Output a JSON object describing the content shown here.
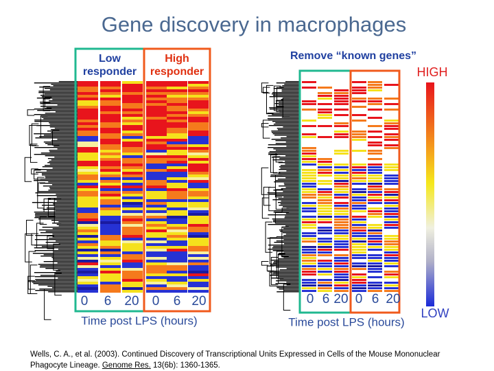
{
  "title": "Gene discovery in macrophages",
  "left_panel": {
    "groups": [
      {
        "line1": "Low",
        "line2": "responder"
      },
      {
        "line1": "High",
        "line2": "responder"
      }
    ],
    "timepoints": [
      "0",
      "6",
      "20",
      "0",
      "6",
      "20"
    ],
    "axis_label": "Time post LPS  (hours)"
  },
  "right_panel": {
    "title": "Remove “known genes”",
    "timepoints": [
      "0",
      "6",
      "20",
      "0",
      "6",
      "20"
    ],
    "axis_label": "Time post LPS  (hours)"
  },
  "color_scale": {
    "high": "HIGH",
    "low": "LOW"
  },
  "citation": {
    "before": "Wells, C. A., et al. (2003). Continued Discovery of Transcriptional Units Expressed in Cells of the Mouse Mononuclear Phagocyte Lineage. ",
    "journal": "Genome Res.",
    "after": " 13(6b): 1360-1365."
  }
}
